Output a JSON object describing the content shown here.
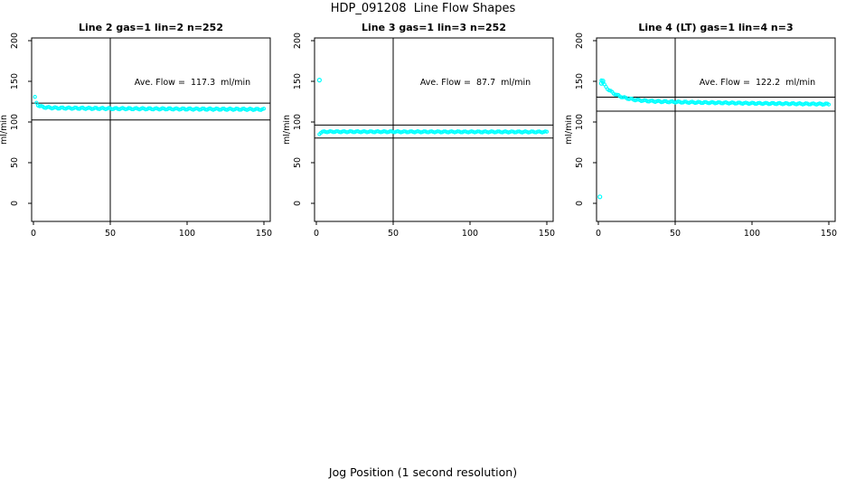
{
  "figure": {
    "title": "HDP_091208  Line Flow Shapes",
    "xlabel": "Jog Position (1 second resolution)"
  },
  "colors": {
    "point": "#00FFFF",
    "axis": "#000000",
    "background": "#FFFFFF"
  },
  "chart_data": [
    {
      "type": "scatter",
      "title": "Line 2 gas=1 lin=2 n=252",
      "annotation": "Ave. Flow =  117.3  ml/min",
      "ave_flow_ml_min": 117.3,
      "ylabel": "ml/min",
      "xlim": [
        0,
        150
      ],
      "ylim": [
        0,
        200
      ],
      "xticks": [
        0,
        50,
        100,
        150
      ],
      "yticks": [
        0,
        50,
        100,
        150,
        200
      ],
      "vline_x": 50,
      "hlines": [
        123.2,
        102.5
      ],
      "jitter": 0.9,
      "series_keypoints": [
        [
          1,
          130
        ],
        [
          2,
          123.5
        ],
        [
          3,
          121
        ],
        [
          4,
          119.8
        ],
        [
          5,
          119
        ],
        [
          6,
          118.5
        ],
        [
          8,
          118
        ],
        [
          10,
          117.7
        ],
        [
          13,
          117.4
        ],
        [
          16,
          117.2
        ],
        [
          20,
          117.1
        ],
        [
          30,
          116.9
        ],
        [
          40,
          116.7
        ],
        [
          50,
          116.5
        ],
        [
          60,
          116.4
        ],
        [
          70,
          116.3
        ],
        [
          80,
          116.2
        ],
        [
          90,
          116.1
        ],
        [
          100,
          116.0
        ],
        [
          110,
          115.9
        ],
        [
          120,
          115.8
        ],
        [
          135,
          115.7
        ],
        [
          150,
          115.5
        ]
      ],
      "outlier_points": []
    },
    {
      "type": "scatter",
      "title": "Line 3 gas=1 lin=3 n=252",
      "annotation": "Ave. Flow =  87.7  ml/min",
      "ave_flow_ml_min": 87.7,
      "ylabel": "ml/min",
      "xlim": [
        0,
        150
      ],
      "ylim": [
        0,
        200
      ],
      "xticks": [
        0,
        50,
        100,
        150
      ],
      "yticks": [
        0,
        50,
        100,
        150,
        200
      ],
      "vline_x": 50,
      "hlines": [
        96.2,
        80.3
      ],
      "jitter": 0.7,
      "series_keypoints": [
        [
          2,
          85.5
        ],
        [
          3,
          87.3
        ],
        [
          4,
          87.8
        ],
        [
          6,
          88.0
        ],
        [
          10,
          88.1
        ],
        [
          50,
          88.0
        ],
        [
          100,
          87.9
        ],
        [
          150,
          87.8
        ]
      ],
      "outlier_points": [
        [
          2,
          151.5
        ]
      ]
    },
    {
      "type": "scatter",
      "title": "Line 4 (LT) gas=1 lin=4 n=3",
      "annotation": "Ave. Flow =  122.2  ml/min",
      "ave_flow_ml_min": 122.2,
      "ylabel": "ml/min",
      "xlim": [
        0,
        150
      ],
      "ylim": [
        0,
        200
      ],
      "xticks": [
        0,
        50,
        100,
        150
      ],
      "yticks": [
        0,
        50,
        100,
        150,
        200
      ],
      "vline_x": 50,
      "hlines": [
        130.6,
        113.3
      ],
      "jitter": 0.8,
      "series_keypoints": [
        [
          2,
          152
        ],
        [
          3,
          148.5
        ],
        [
          4,
          145.5
        ],
        [
          5,
          143
        ],
        [
          6,
          141
        ],
        [
          7,
          139.3
        ],
        [
          8,
          137.8
        ],
        [
          9,
          136.5
        ],
        [
          10,
          135.3
        ],
        [
          12,
          133.3
        ],
        [
          14,
          131.7
        ],
        [
          16,
          130.4
        ],
        [
          18,
          129.4
        ],
        [
          20,
          128.6
        ],
        [
          23,
          127.6
        ],
        [
          26,
          126.9
        ],
        [
          30,
          126.2
        ],
        [
          35,
          125.6
        ],
        [
          40,
          125.2
        ],
        [
          45,
          124.9
        ],
        [
          50,
          124.6
        ],
        [
          60,
          124.2
        ],
        [
          70,
          123.9
        ],
        [
          80,
          123.6
        ],
        [
          90,
          123.3
        ],
        [
          100,
          123.0
        ],
        [
          110,
          122.8
        ],
        [
          120,
          122.6
        ],
        [
          130,
          122.4
        ],
        [
          140,
          122.2
        ],
        [
          150,
          122.0
        ]
      ],
      "outlier_points": [
        [
          1,
          8
        ],
        [
          2,
          147.5
        ],
        [
          3,
          150.5
        ]
      ]
    }
  ]
}
